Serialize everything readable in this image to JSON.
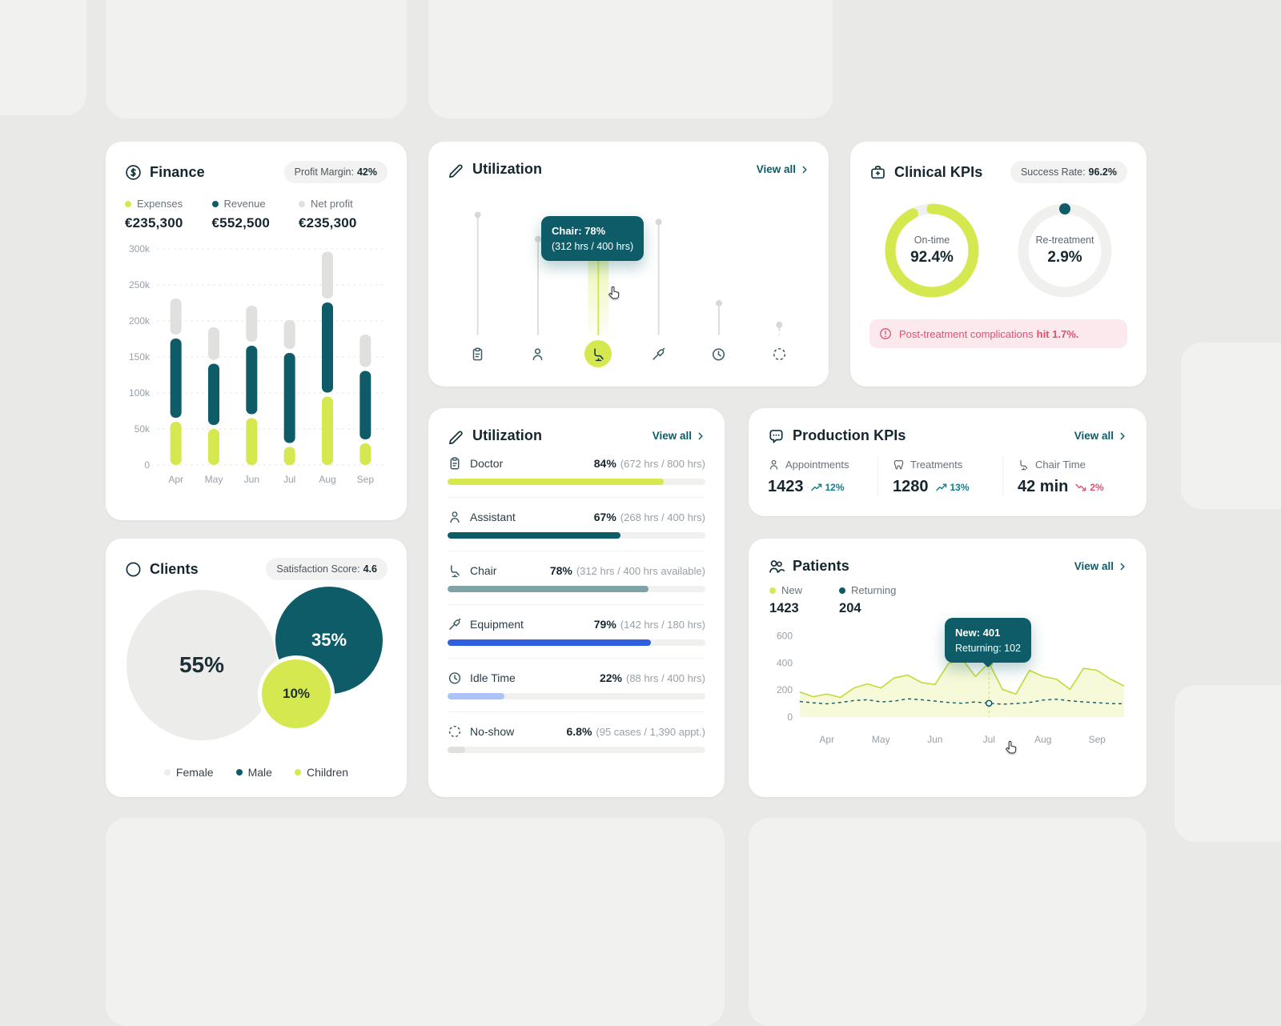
{
  "colors": {
    "lime": "#d6e84f",
    "teal": "#0d5c68",
    "gray": "#e0e0de",
    "light_gray": "#ececea",
    "gray_teal": "#7fa2a6",
    "blue": "#2f5fe0",
    "light_blue": "#abc3f7",
    "red": "#e2506d",
    "trend_up": "#0f7e8c"
  },
  "ui": {
    "chevron_icon": "chevron-right-icon",
    "cursor_icon": "hand-cursor-icon"
  },
  "finance": {
    "title": "Finance",
    "icon": "dollar-circle-icon",
    "badge": {
      "label": "Profit Margin:",
      "value": "42%"
    },
    "stats": [
      {
        "label": "Expenses",
        "value": "€235,300",
        "color": "lime"
      },
      {
        "label": "Revenue",
        "value": "€552,500",
        "color": "teal"
      },
      {
        "label": "Net profit",
        "value": "€235,300",
        "color": "gray"
      }
    ],
    "chart_data": {
      "type": "bar",
      "stacked": true,
      "categories": [
        "Apr",
        "May",
        "Jun",
        "Jul",
        "Aug",
        "Sep"
      ],
      "series": [
        {
          "name": "Expenses",
          "color": "lime",
          "values": [
            60,
            50,
            65,
            25,
            95,
            30
          ]
        },
        {
          "name": "Revenue",
          "color": "teal",
          "values": [
            110,
            85,
            95,
            125,
            125,
            95
          ]
        },
        {
          "name": "Net profit",
          "color": "gray",
          "values": [
            50,
            45,
            50,
            40,
            65,
            45
          ]
        }
      ],
      "ylim": [
        0,
        300
      ],
      "yticks": [
        {
          "v": 300,
          "label": "300k"
        },
        {
          "v": 250,
          "label": "250k"
        },
        {
          "v": 200,
          "label": "200k"
        },
        {
          "v": 150,
          "label": "150k"
        },
        {
          "v": 100,
          "label": "100k"
        },
        {
          "v": 50,
          "label": "50k"
        },
        {
          "v": 0,
          "label": "0"
        }
      ]
    }
  },
  "utilization_overview": {
    "title": "Utilization",
    "icon": "pen-icon",
    "view_all": "View all",
    "tooltip": {
      "line1": "Chair: 78%",
      "line2": "(312 hrs / 400 hrs)"
    },
    "chart_data": {
      "type": "bar",
      "categories": [
        "Doctor",
        "Assistant",
        "Chair",
        "Equipment",
        "Idle Time",
        "No-show"
      ],
      "values": [
        84,
        67,
        78,
        79,
        22,
        6.8
      ],
      "highlight_index": 2,
      "icons": [
        "clipboard-icon",
        "person-icon",
        "chair-icon",
        "drill-icon",
        "clock-icon",
        "dashed-circle-icon"
      ]
    }
  },
  "clinical": {
    "title": "Clinical KPIs",
    "icon": "medical-case-icon",
    "badge": {
      "label": "Success Rate:",
      "value": "96.2%"
    },
    "donuts": [
      {
        "label": "On-time",
        "value": "92.4%",
        "pct": 92.4,
        "style": "ring"
      },
      {
        "label": "Re-treatment",
        "value": "2.9%",
        "pct": 2.9,
        "style": "dot"
      }
    ],
    "alert": {
      "icon": "alert-circle-icon",
      "text": "Post-treatment complications",
      "bold": "hit 1.7%."
    }
  },
  "utilization_detail": {
    "title": "Utilization",
    "icon": "pen-icon",
    "view_all": "View all",
    "rows": [
      {
        "name": "Doctor",
        "pct": "84%",
        "detail": "(672 hrs / 800 hrs)",
        "value": 84,
        "color": "lime",
        "icon": "clipboard-icon"
      },
      {
        "name": "Assistant",
        "pct": "67%",
        "detail": "(268 hrs / 400 hrs)",
        "value": 67,
        "color": "teal",
        "icon": "person-icon"
      },
      {
        "name": "Chair",
        "pct": "78%",
        "detail": "(312 hrs / 400 hrs available)",
        "value": 78,
        "color": "gray_teal",
        "icon": "chair-icon"
      },
      {
        "name": "Equipment",
        "pct": "79%",
        "detail": "(142 hrs / 180 hrs)",
        "value": 79,
        "color": "blue",
        "icon": "drill-icon"
      },
      {
        "name": "Idle Time",
        "pct": "22%",
        "detail": "(88 hrs / 400 hrs)",
        "value": 22,
        "color": "light_blue",
        "icon": "clock-icon"
      },
      {
        "name": "No-show",
        "pct": "6.8%",
        "detail": "(95 cases / 1,390 appt.)",
        "value": 6.8,
        "color": "gray",
        "icon": "dashed-circle-icon"
      }
    ]
  },
  "production": {
    "title": "Production KPIs",
    "icon": "chat-dots-icon",
    "view_all": "View all",
    "stats": [
      {
        "label": "Appointments",
        "value": "1423",
        "trend": "12%",
        "direction": "up",
        "icon": "person-icon"
      },
      {
        "label": "Treatments",
        "value": "1280",
        "trend": "13%",
        "direction": "up",
        "icon": "tooth-icon"
      },
      {
        "label": "Chair Time",
        "value": "42 min",
        "trend": "2%",
        "direction": "down",
        "icon": "chair-icon"
      }
    ]
  },
  "clients": {
    "title": "Clients",
    "icon": "circle-icon",
    "badge": {
      "label": "Satisfaction Score:",
      "value": "4.6"
    },
    "chart_data": {
      "type": "pie",
      "segments": [
        {
          "label": "Female",
          "value": "55%",
          "pct": 55,
          "color": "light_gray"
        },
        {
          "label": "Male",
          "value": "35%",
          "pct": 35,
          "color": "teal"
        },
        {
          "label": "Children",
          "value": "10%",
          "pct": 10,
          "color": "lime"
        }
      ]
    }
  },
  "patients": {
    "title": "Patients",
    "icon": "people-icon",
    "view_all": "View all",
    "legend": [
      {
        "label": "New",
        "value": "1423",
        "color": "lime"
      },
      {
        "label": "Returning",
        "value": "204",
        "color": "teal"
      }
    ],
    "tooltip": {
      "line1": "New: 401",
      "line2": "Returning: 102"
    },
    "chart_data": {
      "type": "area",
      "x_labels": [
        "Apr",
        "May",
        "Jun",
        "Jul",
        "Aug",
        "Sep"
      ],
      "yticks": [
        600,
        400,
        200,
        0
      ],
      "ylim": [
        0,
        650
      ],
      "marker_index": 14,
      "series": [
        {
          "name": "New",
          "color": "lime",
          "style": "area",
          "values": [
            185,
            150,
            170,
            145,
            215,
            245,
            215,
            290,
            310,
            255,
            240,
            395,
            430,
            300,
            401,
            205,
            170,
            345,
            300,
            280,
            205,
            360,
            345,
            280,
            230
          ]
        },
        {
          "name": "Returning",
          "color": "teal",
          "style": "dashed",
          "values": [
            115,
            105,
            98,
            108,
            122,
            128,
            112,
            118,
            135,
            128,
            118,
            108,
            102,
            112,
            102,
            95,
            100,
            108,
            126,
            132,
            120,
            112,
            106,
            100,
            98
          ]
        }
      ]
    }
  }
}
